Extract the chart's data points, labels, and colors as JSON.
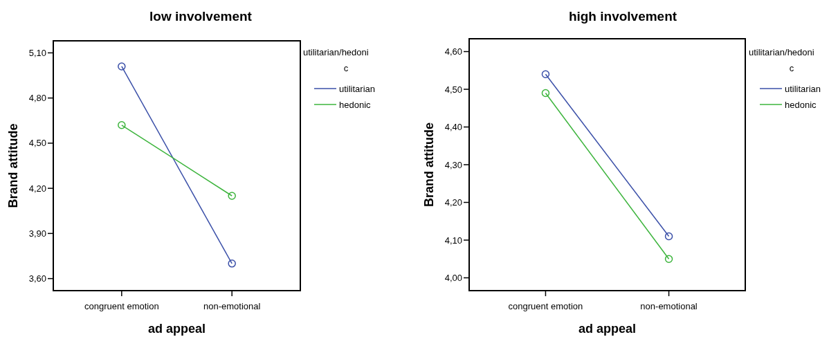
{
  "chart_data": [
    {
      "type": "line",
      "title": "low involvement",
      "xlabel": "ad appeal",
      "ylabel": "Brand attitude",
      "legend_title": "utilitarian/hedonic",
      "categories": [
        "congruent emotion",
        "non-emotional"
      ],
      "series": [
        {
          "name": "utilitarian",
          "color": "#3a4fa8",
          "values": [
            5.01,
            3.7
          ]
        },
        {
          "name": "hedonic",
          "color": "#3cb43c",
          "values": [
            4.62,
            4.15
          ]
        }
      ],
      "ylim": [
        3.52,
        5.18
      ],
      "yticks": [
        {
          "value": 3.6,
          "label": "3,60"
        },
        {
          "value": 3.9,
          "label": "3,90"
        },
        {
          "value": 4.2,
          "label": "4,20"
        },
        {
          "value": 4.5,
          "label": "4,50"
        },
        {
          "value": 4.8,
          "label": "4,80"
        },
        {
          "value": 5.1,
          "label": "5,10"
        }
      ],
      "legend": "right",
      "marker": "circle",
      "grid": false
    },
    {
      "type": "line",
      "title": "high involvement",
      "xlabel": "ad appeal",
      "ylabel": "Brand attitude",
      "legend_title": "utilitarian/hedonic",
      "categories": [
        "congruent emotion",
        "non-emotional"
      ],
      "series": [
        {
          "name": "utilitarian",
          "color": "#3a4fa8",
          "values": [
            4.54,
            4.11
          ]
        },
        {
          "name": "hedonic",
          "color": "#3cb43c",
          "values": [
            4.49,
            4.05
          ]
        }
      ],
      "ylim": [
        3.966,
        4.634
      ],
      "yticks": [
        {
          "value": 4.0,
          "label": "4,00"
        },
        {
          "value": 4.1,
          "label": "4,10"
        },
        {
          "value": 4.2,
          "label": "4,20"
        },
        {
          "value": 4.3,
          "label": "4,30"
        },
        {
          "value": 4.4,
          "label": "4,40"
        },
        {
          "value": 4.5,
          "label": "4,50"
        },
        {
          "value": 4.6,
          "label": "4,60"
        }
      ],
      "legend": "right",
      "marker": "circle",
      "grid": false
    }
  ]
}
